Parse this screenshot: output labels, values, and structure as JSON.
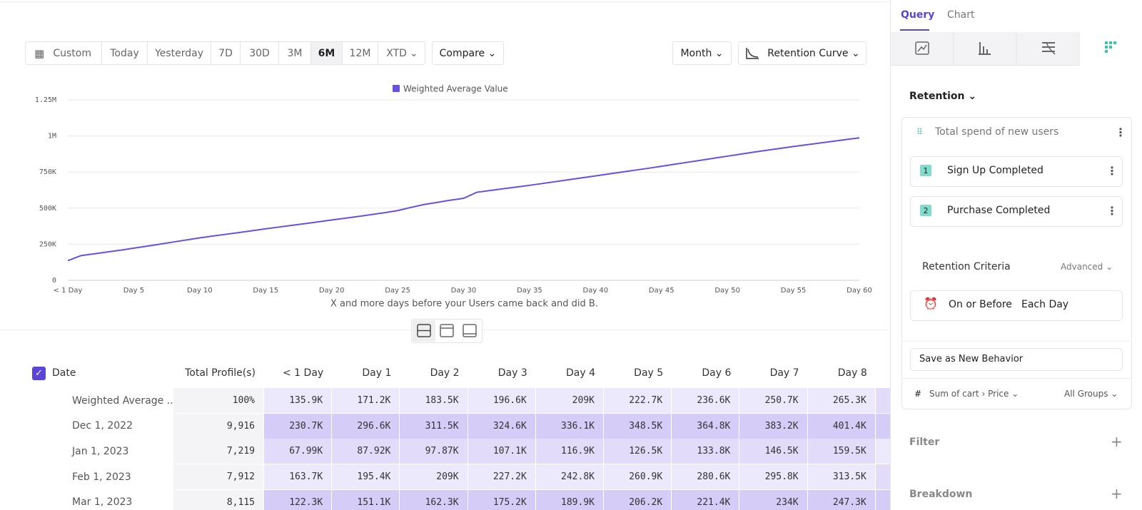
{
  "toolbar": {
    "ranges": [
      "Custom",
      "Today",
      "Yesterday",
      "7D",
      "30D",
      "3M",
      "6M",
      "12M",
      "XTD"
    ],
    "compare": "Compare",
    "granularity": "Month",
    "chart_type": "Retention Curve"
  },
  "chart_data": {
    "type": "line",
    "categories": [
      "< 1 Day",
      null,
      null,
      null,
      null,
      "Day 5",
      null,
      null,
      null,
      null,
      "Day 10",
      null,
      null,
      null,
      null,
      "Day 15",
      null,
      null,
      null,
      null,
      "Day 20",
      null,
      null,
      null,
      null,
      "Day 25",
      null,
      null,
      null,
      null,
      "Day 30",
      null,
      null,
      null,
      null,
      "Day 35",
      null,
      null,
      null,
      null,
      "Day 40",
      null,
      null,
      null,
      null,
      "Day 45",
      null,
      null,
      null,
      null,
      "Day 50",
      null,
      null,
      null,
      null,
      "Day 55",
      null,
      null,
      null,
      null,
      "Day 60"
    ],
    "series": [
      {
        "name": "Weighted Average Value",
        "color": "#6a4fe0",
        "values": [
          135900,
          171200,
          183500,
          196600,
          209000,
          222700,
          236600,
          250700,
          265300,
          280000,
          294000,
          307000,
          319000,
          331000,
          344000,
          357000,
          369000,
          381000,
          393000,
          405000,
          418000,
          430000,
          442000,
          455000,
          468000,
          483000,
          505000,
          525000,
          540000,
          555000,
          568000,
          610000,
          622000,
          634000,
          646000,
          658000,
          671000,
          684000,
          697000,
          710000,
          723000,
          737000,
          750000,
          763000,
          776000,
          790000,
          804000,
          818000,
          832000,
          846000,
          860000,
          874000,
          888000,
          901000,
          914000,
          927000,
          939000,
          951000,
          963000,
          975000,
          987000
        ]
      }
    ],
    "xlabel": "X and more days before your Users came back and did B.",
    "ylim": [
      0,
      1250000
    ],
    "yticks": [
      0,
      {
        "value": 250000,
        "label": "250K"
      },
      {
        "value": 500000,
        "label": "500K"
      },
      {
        "value": 750000,
        "label": "750K"
      },
      {
        "value": 1000000,
        "label": "1M"
      },
      {
        "value": 1250000,
        "label": "1.25M"
      }
    ],
    "grid": true,
    "legend": "top"
  },
  "table": {
    "columns": [
      "Date",
      "Total Profile(s)",
      "< 1 Day",
      "Day 1",
      "Day 2",
      "Day 3",
      "Day 4",
      "Day 5",
      "Day 6",
      "Day 7",
      "Day 8"
    ],
    "rows": [
      [
        "Weighted Average ...",
        "100%",
        "135.9K",
        "171.2K",
        "183.5K",
        "196.6K",
        "209K",
        "222.7K",
        "236.6K",
        "250.7K",
        "265.3K"
      ],
      [
        "Dec 1, 2022",
        "9,916",
        "230.7K",
        "296.6K",
        "311.5K",
        "324.6K",
        "336.1K",
        "348.5K",
        "364.8K",
        "383.2K",
        "401.4K"
      ],
      [
        "Jan 1, 2023",
        "7,219",
        "67.99K",
        "87.92K",
        "97.87K",
        "107.1K",
        "116.9K",
        "126.5K",
        "133.8K",
        "146.5K",
        "159.5K"
      ],
      [
        "Feb 1, 2023",
        "7,912",
        "163.7K",
        "195.4K",
        "209K",
        "227.2K",
        "242.8K",
        "260.9K",
        "280.6K",
        "295.8K",
        "313.5K"
      ],
      [
        "Mar 1, 2023",
        "8,115",
        "122.3K",
        "151.1K",
        "162.3K",
        "175.2K",
        "189.9K",
        "206.2K",
        "221.4K",
        "234K",
        "247.3K"
      ]
    ]
  },
  "panel": {
    "tabs": [
      "Query",
      "Chart"
    ],
    "section": "Retention",
    "metric": "Total spend of new users",
    "steps": [
      {
        "number": 1,
        "label": "Sign Up Completed"
      },
      {
        "number": 2,
        "label": "Purchase Completed"
      }
    ],
    "criteria_title": "Retention Criteria",
    "criteria_mode": "Advanced",
    "criteria": [
      "On or Before",
      "Each Day"
    ],
    "save": "Save as New Behavior",
    "aggregation_symbol": "#",
    "aggregation": "Sum of cart › Price",
    "groups": "All Groups",
    "filter": "Filter",
    "breakdown": "Breakdown"
  }
}
